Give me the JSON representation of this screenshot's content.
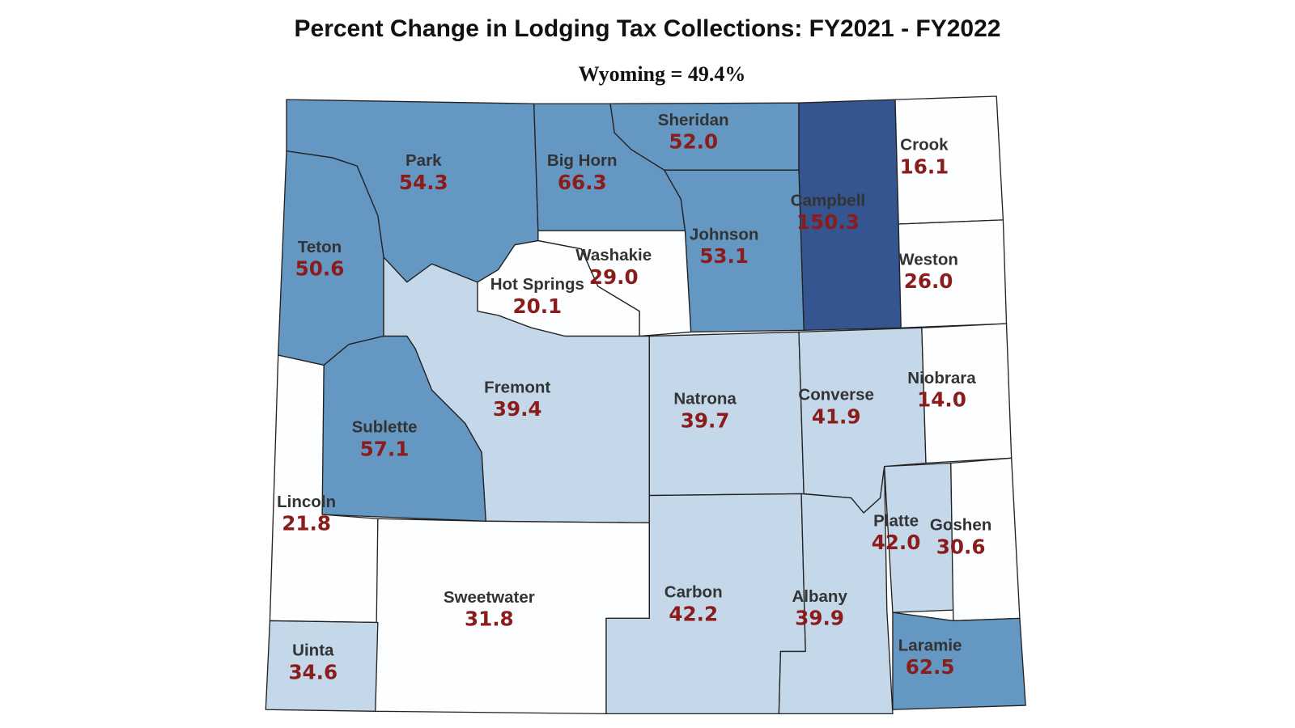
{
  "title": "Percent Change in Lodging Tax Collections: FY2021 - FY2022",
  "subtitle": "Wyoming = 49.4%",
  "counties": [
    {
      "name": "Park",
      "value": 54.3,
      "value_label": "54.3",
      "color": "#6497c2"
    },
    {
      "name": "Big Horn",
      "value": 66.3,
      "value_label": "66.3",
      "color": "#6497c2"
    },
    {
      "name": "Sheridan",
      "value": 52.0,
      "value_label": "52.0",
      "color": "#6497c2"
    },
    {
      "name": "Campbell",
      "value": 150.3,
      "value_label": "150.3",
      "color": "#34558f"
    },
    {
      "name": "Crook",
      "value": 16.1,
      "value_label": "16.1",
      "color": "#fdfeff"
    },
    {
      "name": "Teton",
      "value": 50.6,
      "value_label": "50.6",
      "color": "#6497c2"
    },
    {
      "name": "Johnson",
      "value": 53.1,
      "value_label": "53.1",
      "color": "#6497c2"
    },
    {
      "name": "Washakie",
      "value": 29.0,
      "value_label": "29.0",
      "color": "#fdfeff"
    },
    {
      "name": "Hot Springs",
      "value": 20.1,
      "value_label": "20.1",
      "color": "#fdfeff"
    },
    {
      "name": "Weston",
      "value": 26.0,
      "value_label": "26.0",
      "color": "#fdfeff"
    },
    {
      "name": "Fremont",
      "value": 39.4,
      "value_label": "39.4",
      "color": "#c4d8ea"
    },
    {
      "name": "Natrona",
      "value": 39.7,
      "value_label": "39.7",
      "color": "#c4d8ea"
    },
    {
      "name": "Converse",
      "value": 41.9,
      "value_label": "41.9",
      "color": "#c4d8ea"
    },
    {
      "name": "Niobrara",
      "value": 14.0,
      "value_label": "14.0",
      "color": "#fdfeff"
    },
    {
      "name": "Sublette",
      "value": 57.1,
      "value_label": "57.1",
      "color": "#6497c2"
    },
    {
      "name": "Lincoln",
      "value": 21.8,
      "value_label": "21.8",
      "color": "#fdfeff"
    },
    {
      "name": "Platte",
      "value": 42.0,
      "value_label": "42.0",
      "color": "#c4d8ea"
    },
    {
      "name": "Goshen",
      "value": 30.6,
      "value_label": "30.6",
      "color": "#fdfeff"
    },
    {
      "name": "Sweetwater",
      "value": 31.8,
      "value_label": "31.8",
      "color": "#fdfeff"
    },
    {
      "name": "Carbon",
      "value": 42.2,
      "value_label": "42.2",
      "color": "#c4d8ea"
    },
    {
      "name": "Albany",
      "value": 39.9,
      "value_label": "39.9",
      "color": "#c4d8ea"
    },
    {
      "name": "Uinta",
      "value": 34.6,
      "value_label": "34.6",
      "color": "#c4d8ea"
    },
    {
      "name": "Laramie",
      "value": 62.5,
      "value_label": "62.5",
      "color": "#6497c2"
    }
  ]
}
